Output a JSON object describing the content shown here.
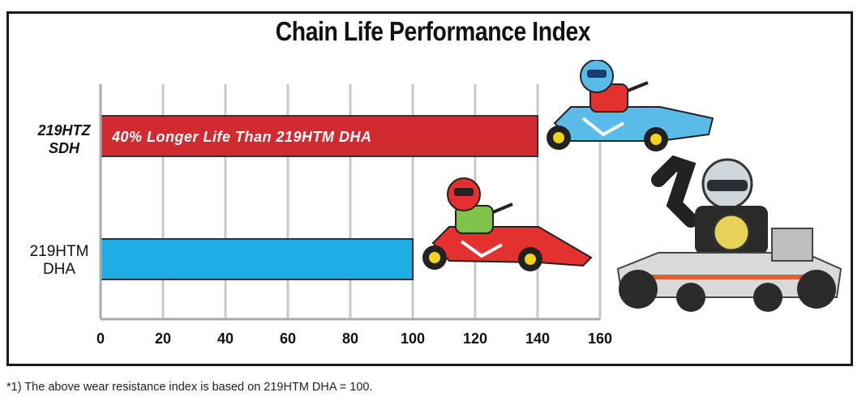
{
  "chart_data": {
    "type": "bar",
    "orientation": "horizontal",
    "title": "Chain Life Performance Index",
    "categories": [
      {
        "line1": "219HTZ",
        "line2": "SDH",
        "style": "bold-italic"
      },
      {
        "line1": "219HTM",
        "line2": "DHA",
        "style": "bold"
      }
    ],
    "values": [
      140,
      100
    ],
    "bar_colors": [
      "#d12a31",
      "#1eaee6"
    ],
    "bar_annotations": [
      "40% Longer Life Than 219HTM DHA",
      ""
    ],
    "xlim": [
      0,
      160
    ],
    "xticks": [
      0,
      20,
      40,
      60,
      80,
      100,
      120,
      140,
      160
    ],
    "grid": "vertical",
    "xlabel": "",
    "ylabel": ""
  },
  "footnote": "*1) The above wear resistance index is based on 219HTM DHA = 100.",
  "illustrations": [
    "go-kart-blue-helmet-icon",
    "go-kart-red-helmet-icon",
    "kart-racer-photo"
  ]
}
